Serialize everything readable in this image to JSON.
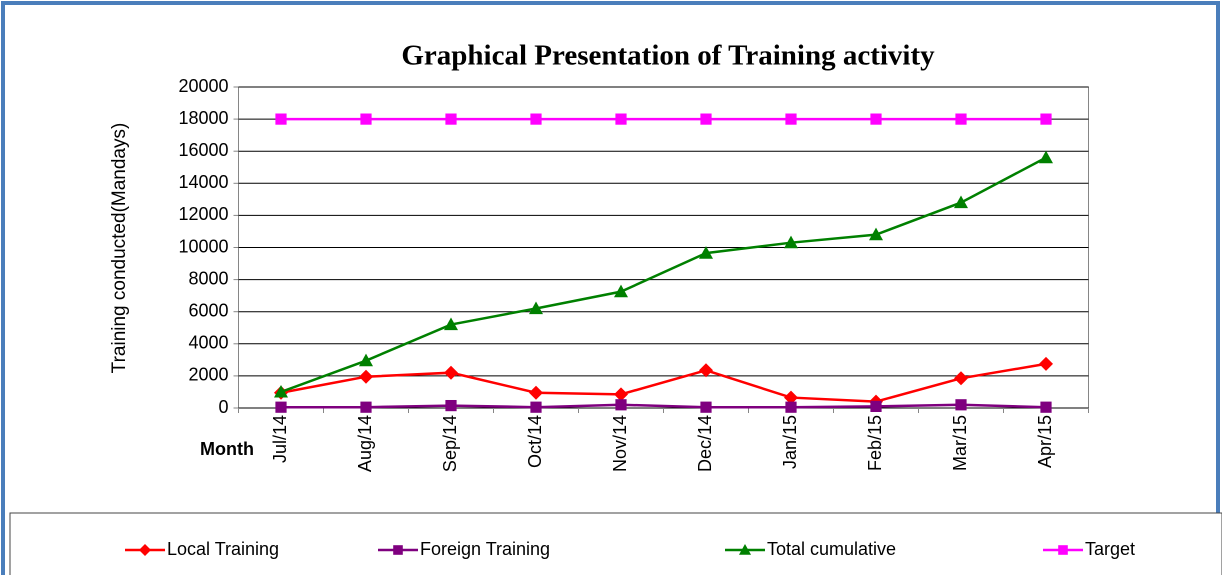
{
  "chart_data": {
    "type": "line",
    "title": "Graphical Presentation of Training activity",
    "ylabel": "Training conducted(Mandays)",
    "xlabel": "Month",
    "categories": [
      "Jul/14",
      "Aug/14",
      "Sep/14",
      "Oct/14",
      "Nov/14",
      "Dec/14",
      "Jan/15",
      "Feb/15",
      "Mar/15",
      "Apr/15"
    ],
    "series": [
      {
        "name": "Local Training",
        "color": "#ff0000",
        "marker": "diamond",
        "values": [
          950,
          1950,
          2200,
          950,
          850,
          2350,
          650,
          400,
          1850,
          2750
        ]
      },
      {
        "name": "Foreign Training",
        "color": "#7f007f",
        "marker": "square",
        "values": [
          50,
          50,
          150,
          50,
          200,
          50,
          50,
          100,
          200,
          50
        ]
      },
      {
        "name": "Total cumulative",
        "color": "#008000",
        "marker": "triangle",
        "values": [
          1000,
          2950,
          5200,
          6200,
          7250,
          9650,
          10300,
          10800,
          12800,
          15600
        ]
      },
      {
        "name": "Target",
        "color": "#ff00ff",
        "marker": "square",
        "values": [
          18000,
          18000,
          18000,
          18000,
          18000,
          18000,
          18000,
          18000,
          18000,
          18000
        ]
      }
    ],
    "ylim": [
      0,
      20000
    ],
    "yticks": [
      0,
      2000,
      4000,
      6000,
      8000,
      10000,
      12000,
      14000,
      16000,
      18000,
      20000
    ],
    "grid": true,
    "legend": "bottom"
  }
}
